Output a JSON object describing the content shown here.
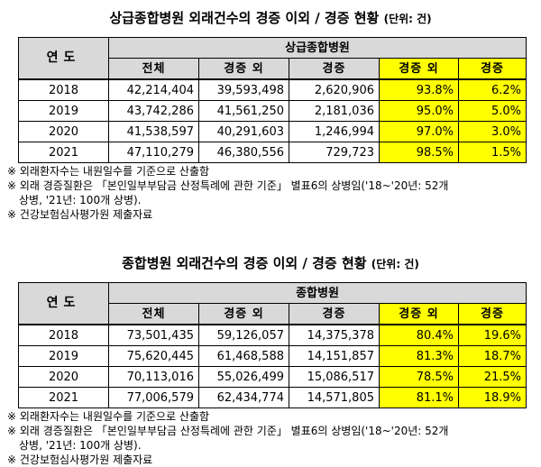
{
  "tables": [
    {
      "title": "상급종합병원 외래건수의 경증 이외 / 경증 현황",
      "unit": "(단위: 건)",
      "year_header": "연도",
      "group_header": "상급종합병원",
      "column_headers": [
        "전체",
        "경증 외",
        "경증",
        "경증 외",
        "경증"
      ],
      "rows": [
        {
          "year": "2018",
          "total": "42,214,404",
          "non_mild": "39,593,498",
          "mild": "2,620,906",
          "non_mild_pct": "93.8%",
          "mild_pct": "6.2%"
        },
        {
          "year": "2019",
          "total": "43,742,286",
          "non_mild": "41,561,250",
          "mild": "2,181,036",
          "non_mild_pct": "95.0%",
          "mild_pct": "5.0%"
        },
        {
          "year": "2020",
          "total": "41,538,597",
          "non_mild": "40,291,603",
          "mild": "1,246,994",
          "non_mild_pct": "97.0%",
          "mild_pct": "3.0%"
        },
        {
          "year": "2021",
          "total": "47,110,279",
          "non_mild": "46,380,556",
          "mild": "729,723",
          "non_mild_pct": "98.5%",
          "mild_pct": "1.5%"
        }
      ],
      "notes": [
        "※ 외래환자수는 내원일수를 기준으로 산출함",
        "※ 외래 경증질환은 「본인일부부담금 산정특례에 관한 기준」 별표6의 상병임('18~'20년: 52개",
        "상병, '21년: 100개 상병).",
        "※ 건강보험심사평가원 제출자료"
      ]
    },
    {
      "title": "종합병원 외래건수의 경증 이외 / 경증 현황",
      "unit": "(단위: 건)",
      "year_header": "연도",
      "group_header": "종합병원",
      "column_headers": [
        "전체",
        "경증 외",
        "경증",
        "경증 외",
        "경증"
      ],
      "rows": [
        {
          "year": "2018",
          "total": "73,501,435",
          "non_mild": "59,126,057",
          "mild": "14,375,378",
          "non_mild_pct": "80.4%",
          "mild_pct": "19.6%"
        },
        {
          "year": "2019",
          "total": "75,620,445",
          "non_mild": "61,468,588",
          "mild": "14,151,857",
          "non_mild_pct": "81.3%",
          "mild_pct": "18.7%"
        },
        {
          "year": "2020",
          "total": "70,113,016",
          "non_mild": "55,026,499",
          "mild": "15,086,517",
          "non_mild_pct": "78.5%",
          "mild_pct": "21.5%"
        },
        {
          "year": "2021",
          "total": "77,006,579",
          "non_mild": "62,434,774",
          "mild": "14,571,805",
          "non_mild_pct": "81.1%",
          "mild_pct": "18.9%"
        }
      ],
      "notes": [
        "※ 외래환자수는 내원일수를 기준으로 산출함",
        "※ 외래 경증질환은 「본인일부부담금 산정특례에 관한 기준」 별표6의 상병임('18~'20년: 52개",
        "상병, '21년: 100개 상병).",
        "※ 건강보험심사평가원 제출자료"
      ]
    }
  ],
  "colors": {
    "header_gray": "#d9d9d9",
    "highlight_yellow": "#ffff00"
  }
}
